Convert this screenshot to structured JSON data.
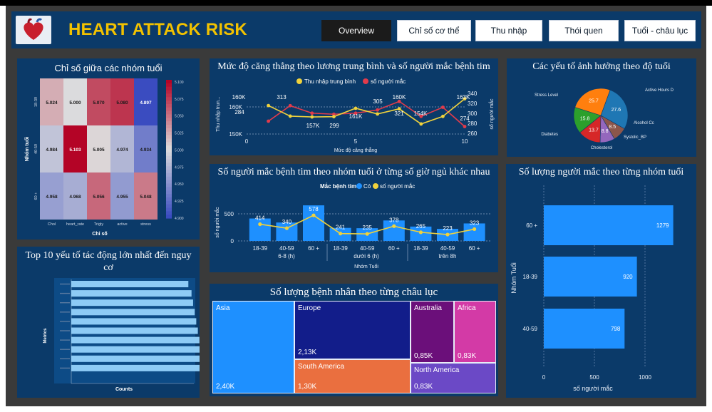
{
  "header": {
    "title": "HEART ATTACK RISK",
    "nav": [
      {
        "label": "Overview",
        "active": true
      },
      {
        "label": "Chỉ số cơ thể",
        "active": false
      },
      {
        "label": "Thu nhập",
        "active": false
      },
      {
        "label": "Thói quen",
        "active": false
      },
      {
        "label": "Tuổi - châu lục",
        "active": false
      }
    ]
  },
  "heatmap": {
    "title": "Chỉ số giữa các nhóm tuổi",
    "ylabel": "Nhóm tuổi",
    "xlabel": "Chỉ số",
    "rows": [
      "18-39",
      "40-59",
      "60 +"
    ],
    "cols": [
      "Chol",
      "heart_rate",
      "Trigly",
      "active",
      "stress"
    ],
    "values": [
      [
        5.024,
        5.0,
        5.07,
        5.08,
        4.897
      ],
      [
        4.984,
        5.103,
        5.005,
        4.974,
        4.934
      ],
      [
        4.958,
        4.968,
        5.056,
        4.955,
        5.048
      ]
    ],
    "colorbar_ticks": [
      "5.100",
      "5.075",
      "5.050",
      "5.025",
      "5.000",
      "4.975",
      "4.950",
      "4.925",
      "4.900"
    ]
  },
  "line_chart": {
    "title": "Mức độ căng thẳng theo lương trung bình và số người mắc bệnh tim",
    "legend": [
      "Thu nhập trung bình",
      "số người mắc"
    ],
    "xlabel": "Mức độ căng thẳng",
    "ylabel_left": "Thu nhập trun...",
    "ylabel_right": "số người mắc",
    "left_ticks": [
      "160K",
      "150K"
    ],
    "right_ticks": [
      "340",
      "320",
      "300",
      "280",
      "260"
    ],
    "x_ticks": [
      "0",
      "5",
      "10"
    ],
    "labels": [
      "160K",
      "313",
      "284",
      "157K",
      "299",
      "161K",
      "305",
      "160K",
      "321",
      "154K",
      "163K",
      "274"
    ]
  },
  "donut": {
    "title": "Các yếu tố ảnh hưởng theo độ tuổi",
    "slices": [
      {
        "name": "Active Hours D",
        "value": 27.6,
        "color": "#1f77b4"
      },
      {
        "name": "Alcohol Cc",
        "value": 8.5,
        "color": "#8c564b"
      },
      {
        "name": "Systolic_BP",
        "value": 8.8,
        "color": "#9467bd"
      },
      {
        "name": "Cholesterol",
        "value": 13.7,
        "color": "#d62728"
      },
      {
        "name": "Diabetes",
        "value": 15.8,
        "color": "#2ca02c"
      },
      {
        "name": "Stress Level",
        "value": 25.7,
        "color": "#ff7f0e"
      }
    ]
  },
  "combo_chart": {
    "title": "Số người mắc bệnh tim theo nhóm tuổi ở từng số giờ ngủ khác nhau",
    "legend_title": "Mắc bệnh tim",
    "legend": [
      "Có",
      "số người mắc"
    ],
    "ylabel": "số người mắc",
    "xlabel": "Nhóm Tuổi",
    "y_ticks": [
      "500",
      "0"
    ],
    "groups": [
      "6-8 (h)",
      "dưới 6 (h)",
      "trên 8h"
    ],
    "categories": [
      "18-39",
      "40-59",
      "60 +",
      "18-39",
      "40-59",
      "60 +",
      "18-39",
      "40-59",
      "60 +"
    ],
    "values": [
      414,
      340,
      578,
      241,
      235,
      378,
      265,
      223,
      323
    ]
  },
  "top10": {
    "title": "Top 10 yếu tố tác động lớn nhất đến nguy cơ",
    "ylabel": "Metrics",
    "xlabel": "Counts",
    "values": [
      0.74,
      0.76,
      0.77,
      0.78,
      0.79,
      0.8,
      0.81,
      0.84,
      0.84,
      0.86
    ]
  },
  "treemap": {
    "title": "Số lượng bệnh nhân theo từng châu lục",
    "items": [
      {
        "name": "Asia",
        "value": "2,40K",
        "color": "#1e90ff"
      },
      {
        "name": "Europe",
        "value": "2,13K",
        "color": "#121d8a"
      },
      {
        "name": "South America",
        "value": "1,30K",
        "color": "#ea6f3f"
      },
      {
        "name": "Australia",
        "value": "0,85K",
        "color": "#6b0f7a"
      },
      {
        "name": "Africa",
        "value": "0,83K",
        "color": "#d33aa6"
      },
      {
        "name": "North America",
        "value": "0,83K",
        "color": "#6b49c6"
      }
    ]
  },
  "hbar": {
    "title": "Số lượng người mắc theo từng nhóm tuổi",
    "ylabel": "Nhóm Tuổi",
    "xlabel": "số người mắc",
    "categories": [
      "60 +",
      "18-39",
      "40-59"
    ],
    "values": [
      1279,
      920,
      798
    ],
    "x_ticks": [
      "0",
      "500",
      "1000"
    ]
  }
}
